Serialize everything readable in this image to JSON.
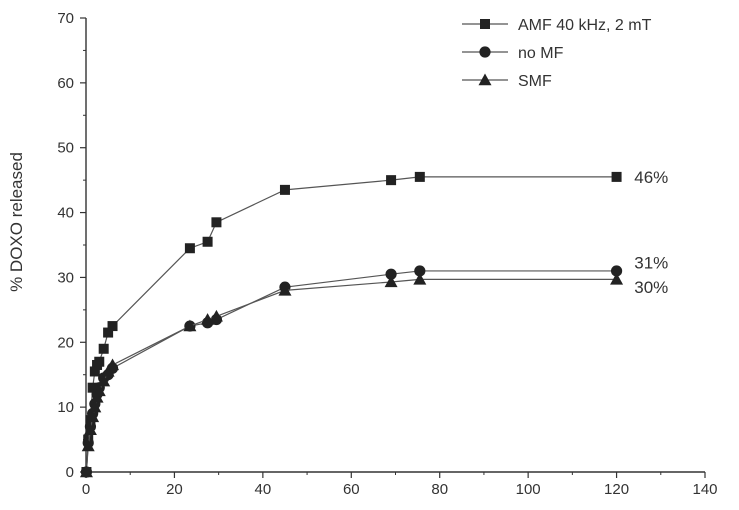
{
  "chart_data": {
    "type": "line",
    "title": "",
    "xlabel": "",
    "ylabel": "% DOXO released",
    "xlim": [
      0,
      140
    ],
    "ylim": [
      0,
      70
    ],
    "x_ticks": [
      0,
      20,
      40,
      60,
      80,
      100,
      120,
      140
    ],
    "y_ticks": [
      0,
      10,
      20,
      30,
      40,
      50,
      60,
      70
    ],
    "grid": false,
    "legend_position": "top-right",
    "series": [
      {
        "name": "AMF 40 kHz, 2 mT",
        "marker": "square",
        "x": [
          0.1,
          0.5,
          1,
          1.5,
          2,
          2.5,
          3,
          4,
          5,
          6,
          23.5,
          27.5,
          29.5,
          45,
          69,
          75.5,
          120
        ],
        "y": [
          0,
          5,
          8,
          13,
          15.5,
          16.5,
          17,
          19,
          21.5,
          22.5,
          34.5,
          35.5,
          38.5,
          43.5,
          45,
          45.5,
          45.5
        ]
      },
      {
        "name": "no MF",
        "marker": "circle",
        "x": [
          0.1,
          0.5,
          1,
          1.5,
          2,
          2.5,
          3,
          4,
          5,
          6,
          23.5,
          27.5,
          29.5,
          45,
          69,
          75.5,
          120
        ],
        "y": [
          0,
          4.5,
          7,
          9,
          10.5,
          12,
          13,
          14.5,
          15,
          16,
          22.5,
          23,
          23.5,
          28.5,
          30.5,
          31,
          31
        ]
      },
      {
        "name": "SMF",
        "marker": "triangle",
        "x": [
          0.1,
          0.5,
          1,
          1.5,
          2,
          2.5,
          3,
          4,
          5,
          6,
          23.5,
          27.5,
          29.5,
          45,
          69,
          75.5,
          120
        ],
        "y": [
          0,
          4,
          6.5,
          8.5,
          10,
          11.5,
          12.5,
          14,
          15.5,
          16.5,
          22.5,
          23.5,
          24,
          28,
          29.3,
          29.7,
          29.7
        ]
      }
    ],
    "annotations": [
      {
        "text": "46%",
        "x": 124,
        "y": 45.5
      },
      {
        "text": "31%",
        "x": 124,
        "y": 32.3
      },
      {
        "text": "30%",
        "x": 124,
        "y": 28.5
      }
    ]
  }
}
